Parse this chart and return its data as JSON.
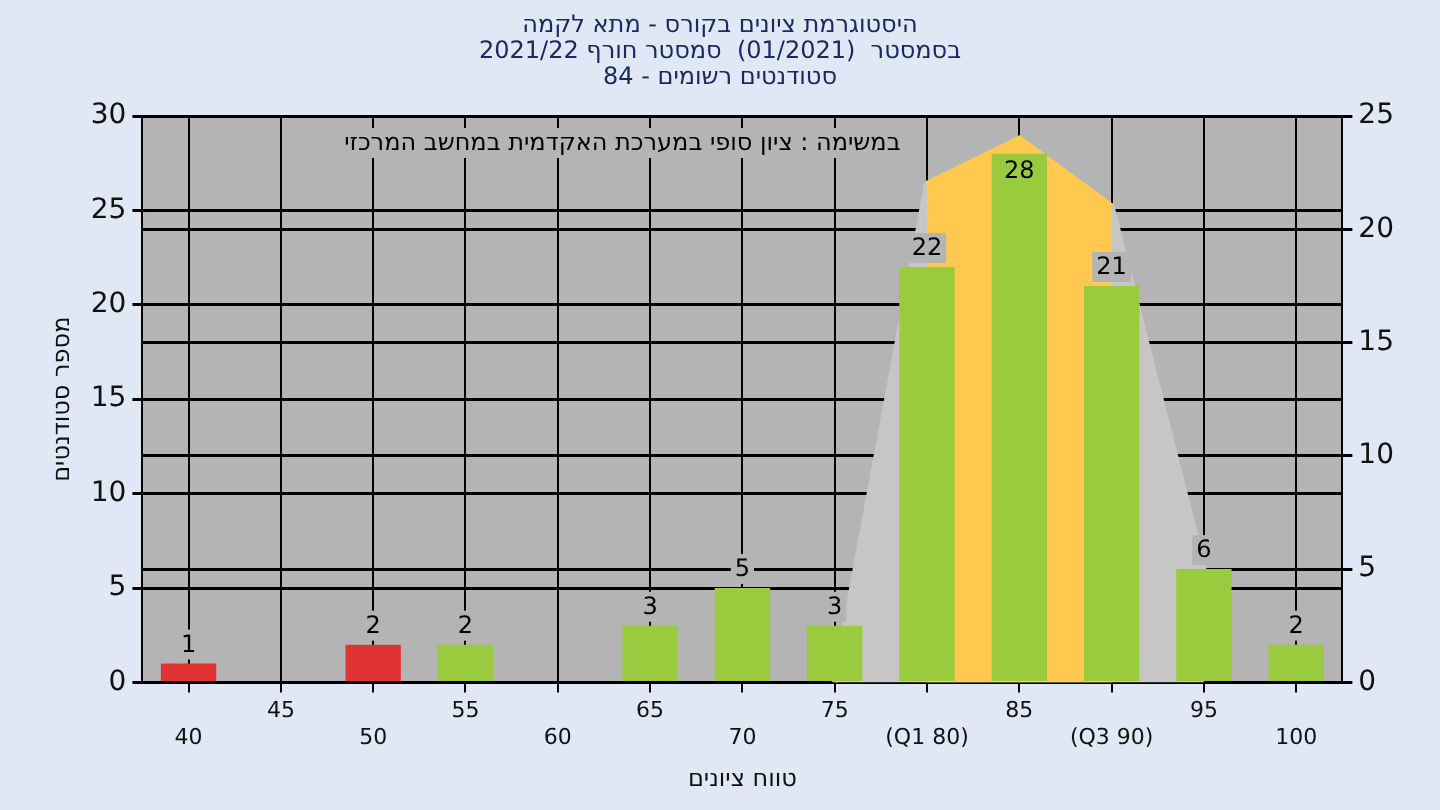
{
  "chart_data": {
    "type": "bar",
    "title": "היסטוגרמת ציונים בקורס - מתא לקמה",
    "subtitle": [
      "בסמסטר  (01/2021)  סמסטר חורף 2021/22",
      "סטודנטים רשומים - 84"
    ],
    "xlabel": "טווח ציונים",
    "ylabel": "מספר סטודנטים",
    "annotations": [
      "במשימה : ציון סופי במערכת האקדמית במחשב המרכזי"
    ],
    "categories": [
      "40",
      "45",
      "50",
      "55",
      "60",
      "65",
      "70",
      "75",
      "(Q1 80)",
      "85",
      "(Q3 90)",
      "95",
      "100"
    ],
    "series": [
      {
        "colors": [
          "#e03434",
          "#9acb3e",
          "#e03434",
          "#9acb3e",
          "#9acb3e",
          "#9acb3e",
          "#9acb3e",
          "#9acb3e",
          "#9acb3e",
          "#9acb3e",
          "#9acb3e",
          "#9acb3e",
          "#9acb3e"
        ],
        "values": [
          1,
          0,
          2,
          2,
          0,
          3,
          5,
          3,
          22,
          28,
          21,
          6,
          2
        ],
        "value_labels": [
          "1",
          null,
          "2",
          "2",
          null,
          "3",
          "5",
          "3",
          "22",
          "28",
          "21",
          "6",
          "2"
        ]
      },
      {
        "type": "area",
        "axis": "y2",
        "color": "#ffc94f",
        "values": [
          null,
          null,
          null,
          null,
          null,
          null,
          null,
          null,
          22,
          24,
          21,
          null,
          null
        ]
      },
      {
        "type": "area",
        "axis": "y2",
        "color": "#c6c6c6",
        "values": [
          null,
          null,
          null,
          null,
          null,
          null,
          null,
          0,
          22,
          24,
          21,
          5,
          null
        ]
      }
    ],
    "ylim": [
      0,
      30
    ],
    "yticks": [
      0,
      5,
      10,
      15,
      20,
      25,
      30
    ],
    "y2lim": [
      0,
      25
    ],
    "y2ticks": [
      0,
      5,
      10,
      15,
      20,
      25
    ],
    "grid": true,
    "legend": false
  }
}
